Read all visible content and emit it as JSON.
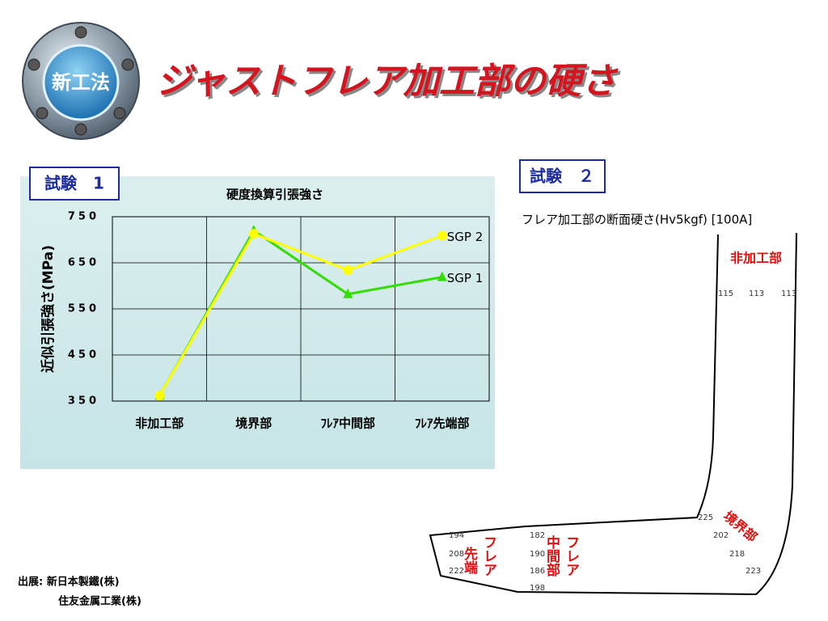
{
  "badge": "新工法",
  "title": "ジャストフレア加工部の硬さ",
  "test1": "試験　1",
  "test2": "試験　２",
  "chart_data": {
    "type": "line",
    "title": "硬度換算引張強さ",
    "y_label": "近似引張強さ(MPa)",
    "categories": [
      "非加工部",
      "境界部",
      "ﾌﾚｱ中間部",
      "ﾌﾚｱ先端部"
    ],
    "series": [
      {
        "name": "SGP 1",
        "color": "#33dd00",
        "marker": "triangle",
        "values": [
          362,
          720,
          582,
          619
        ]
      },
      {
        "name": "SGP 2",
        "color": "#ffff00",
        "marker": "circle",
        "values": [
          362,
          713,
          634,
          709
        ]
      }
    ],
    "ylim": [
      350,
      750
    ],
    "yticks": [
      350,
      450,
      550,
      650,
      750
    ],
    "grid": true
  },
  "diagram": {
    "caption": "フレア加工部の断面硬さ(Hv5kgf) [100A]",
    "label_base": "非加工部",
    "label_boundary": "境界部",
    "label_tip_1": "フレア",
    "label_tip_2": "先端",
    "label_mid_1": "フレア",
    "label_mid_2": "中間部",
    "base": [
      115,
      113,
      113
    ],
    "boundary": [
      225,
      202,
      218,
      223
    ],
    "tip": [
      194,
      208,
      222
    ],
    "mid": [
      182,
      190,
      186,
      198
    ]
  },
  "source": [
    "出展: 新日本製鐵(株)",
    "住友金属工業(株)"
  ]
}
